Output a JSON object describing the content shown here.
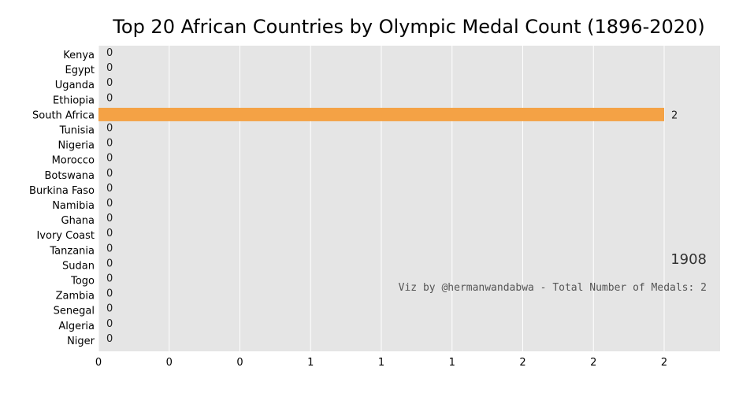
{
  "colors": {
    "plot_background": "#e5e5e5",
    "grid": "#ffffff",
    "bar": "#f4a245"
  },
  "chart_data": {
    "type": "bar",
    "orientation": "horizontal",
    "title": "Top 20 African Countries by Olympic Medal Count (1896-2020)",
    "categories": [
      "Kenya",
      "Egypt",
      "Uganda",
      "Ethiopia",
      "South Africa",
      "Tunisia",
      "Nigeria",
      "Morocco",
      "Botswana",
      "Burkina Faso",
      "Namibia",
      "Ghana",
      "Ivory Coast",
      "Tanzania",
      "Sudan",
      "Togo",
      "Zambia",
      "Senegal",
      "Algeria",
      "Niger"
    ],
    "values": [
      0,
      0,
      0,
      0,
      2,
      0,
      0,
      0,
      0,
      0,
      0,
      0,
      0,
      0,
      0,
      0,
      0,
      0,
      0,
      0
    ],
    "xtick_labels": [
      "0",
      "0",
      "0",
      "1",
      "1",
      "1",
      "2",
      "2",
      "2"
    ],
    "xtick_values": [
      0,
      0.25,
      0.5,
      0.75,
      1.0,
      1.25,
      1.5,
      1.75,
      2.0
    ],
    "xlim": [
      0,
      2.2
    ],
    "grid": true,
    "year_label": "1908",
    "credit": "Viz by @hermanwandabwa - Total Number of Medals: 2"
  }
}
